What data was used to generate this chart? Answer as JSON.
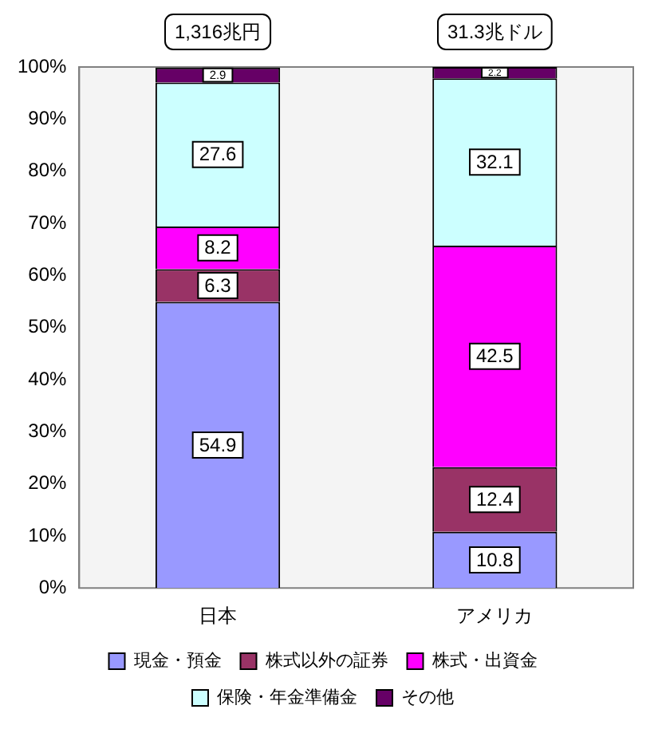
{
  "chart_data": {
    "type": "bar",
    "stacked": true,
    "categories": [
      "日本",
      "アメリカ"
    ],
    "series": [
      {
        "name": "現金・預金",
        "color": "#9999ff",
        "values": [
          54.9,
          10.8
        ]
      },
      {
        "name": "株式以外の証券",
        "color": "#993366",
        "values": [
          6.3,
          12.4
        ]
      },
      {
        "name": "株式・出資金",
        "color": "#ff00ff",
        "values": [
          8.2,
          42.5
        ]
      },
      {
        "name": "保険・年金準備金",
        "color": "#ccffff",
        "values": [
          27.6,
          32.1
        ]
      },
      {
        "name": "その他",
        "color": "#660066",
        "values": [
          2.9,
          2.2
        ]
      }
    ],
    "ylim": [
      0,
      100
    ],
    "yticks": [
      {
        "value": 0,
        "label": "0%"
      },
      {
        "value": 10,
        "label": "10%"
      },
      {
        "value": 20,
        "label": "20%"
      },
      {
        "value": 30,
        "label": "30%"
      },
      {
        "value": 40,
        "label": "40%"
      },
      {
        "value": 50,
        "label": "50%"
      },
      {
        "value": 60,
        "label": "60%"
      },
      {
        "value": 70,
        "label": "70%"
      },
      {
        "value": 80,
        "label": "80%"
      },
      {
        "value": 90,
        "label": "90%"
      },
      {
        "value": 100,
        "label": "100%"
      }
    ],
    "data_labels": true,
    "annotations": [
      {
        "text": "1,316兆円",
        "x": "日本",
        "y": 100
      },
      {
        "text": "31.3兆ドル",
        "x": "アメリカ",
        "y": 100
      }
    ],
    "legend": "bottom",
    "grid": false
  }
}
